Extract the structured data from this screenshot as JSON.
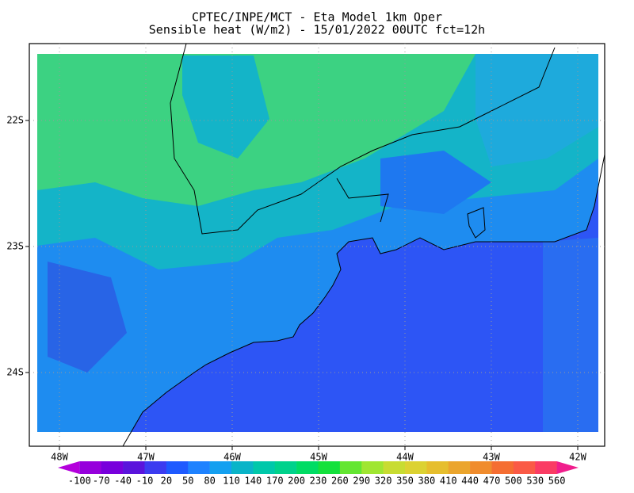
{
  "title": "CPTEC/INPE/MCT -  Eta Model 1km Oper",
  "subtitle": "Sensible heat (W/m2) - 15/01/2022 00UTC fct=12h",
  "lat_ticks": [
    {
      "value": -22,
      "label": "22S"
    },
    {
      "value": -23,
      "label": "23S"
    },
    {
      "value": -24,
      "label": "24S"
    }
  ],
  "lon_ticks": [
    {
      "value": -48,
      "label": "48W"
    },
    {
      "value": -47,
      "label": "47W"
    },
    {
      "value": -46,
      "label": "46W"
    },
    {
      "value": -45,
      "label": "45W"
    },
    {
      "value": -44,
      "label": "44W"
    },
    {
      "value": -43,
      "label": "43W"
    },
    {
      "value": -42,
      "label": "42W"
    }
  ],
  "colorbar": {
    "labels": [
      -100,
      -70,
      -40,
      -10,
      20,
      50,
      80,
      110,
      140,
      170,
      200,
      230,
      260,
      290,
      320,
      350,
      380,
      410,
      440,
      470,
      500,
      530,
      560
    ],
    "colors": [
      "#b400dc",
      "#9600dc",
      "#7800dc",
      "#5a14dc",
      "#3c3cf0",
      "#1e5aff",
      "#1e82ff",
      "#14a0f0",
      "#0ab4c8",
      "#00c8aa",
      "#00d28c",
      "#00dc64",
      "#14e13c",
      "#64e632",
      "#a0e632",
      "#c8dc32",
      "#dcd232",
      "#e6be2d",
      "#eba52d",
      "#f08c2d",
      "#f56e32",
      "#fa5a46",
      "#fa3c64",
      "#f01e8c"
    ]
  }
}
